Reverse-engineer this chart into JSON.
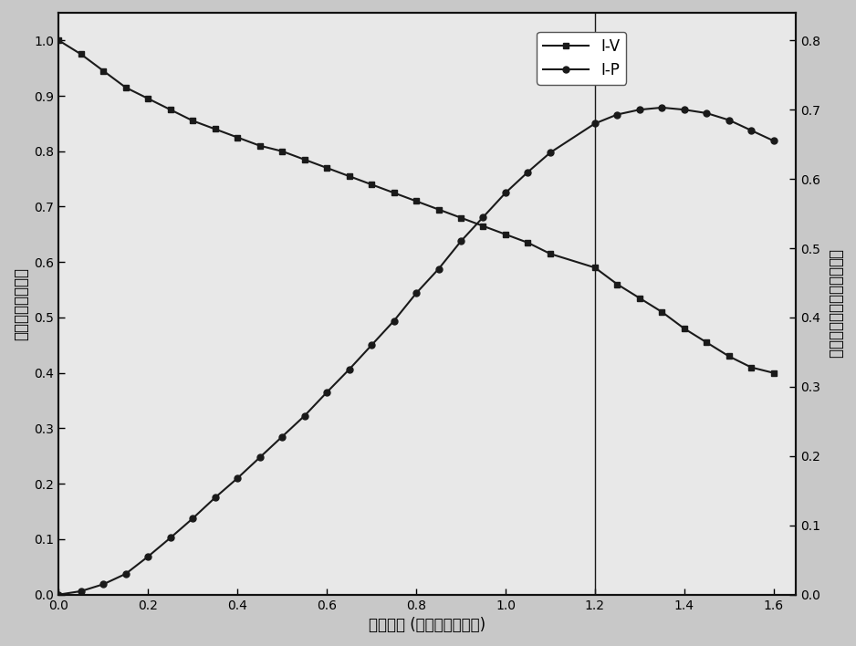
{
  "iv_x": [
    0.0,
    0.05,
    0.1,
    0.15,
    0.2,
    0.25,
    0.3,
    0.35,
    0.4,
    0.45,
    0.5,
    0.55,
    0.6,
    0.65,
    0.7,
    0.75,
    0.8,
    0.85,
    0.9,
    0.95,
    1.0,
    1.05,
    1.1,
    1.2,
    1.25,
    1.3,
    1.35,
    1.4,
    1.45,
    1.5,
    1.55,
    1.6
  ],
  "iv_y": [
    1.0,
    0.975,
    0.945,
    0.915,
    0.895,
    0.875,
    0.855,
    0.84,
    0.825,
    0.81,
    0.8,
    0.785,
    0.77,
    0.755,
    0.74,
    0.725,
    0.71,
    0.695,
    0.68,
    0.665,
    0.65,
    0.635,
    0.615,
    0.59,
    0.56,
    0.535,
    0.51,
    0.48,
    0.455,
    0.43,
    0.41,
    0.4
  ],
  "ip_x": [
    0.0,
    0.05,
    0.1,
    0.15,
    0.2,
    0.25,
    0.3,
    0.35,
    0.4,
    0.45,
    0.5,
    0.55,
    0.6,
    0.65,
    0.7,
    0.75,
    0.8,
    0.85,
    0.9,
    0.95,
    1.0,
    1.05,
    1.1,
    1.2,
    1.25,
    1.3,
    1.35,
    1.4,
    1.45,
    1.5,
    1.55,
    1.6
  ],
  "ip_y": [
    0.0,
    0.005,
    0.015,
    0.03,
    0.055,
    0.082,
    0.11,
    0.14,
    0.168,
    0.198,
    0.228,
    0.258,
    0.292,
    0.325,
    0.36,
    0.395,
    0.435,
    0.47,
    0.51,
    0.545,
    0.58,
    0.61,
    0.638,
    0.68,
    0.693,
    0.7,
    0.703,
    0.7,
    0.695,
    0.685,
    0.67,
    0.655
  ],
  "vline_x": 1.2,
  "xlabel": "电流密度 (安培每平方厕米)",
  "ylabel_left": "电池电压（伏特）",
  "ylabel_right": "功率密度（瓦每平方厕米）",
  "legend_iv": "I-V",
  "legend_ip": "I-P",
  "xlim": [
    0.0,
    1.65
  ],
  "ylim_left": [
    0.0,
    1.05
  ],
  "ylim_right": [
    0.0,
    0.84
  ],
  "xticks": [
    0.0,
    0.2,
    0.4,
    0.6,
    0.8,
    1.0,
    1.2,
    1.4,
    1.6
  ],
  "yticks_left": [
    0.0,
    0.1,
    0.2,
    0.3,
    0.4,
    0.5,
    0.6,
    0.7,
    0.8,
    0.9,
    1.0
  ],
  "yticks_right": [
    0.0,
    0.1,
    0.2,
    0.3,
    0.4,
    0.5,
    0.6,
    0.7,
    0.8
  ],
  "line_color": "#1a1a1a",
  "bg_color": "#e8e8e8",
  "figure_bg": "#c8c8c8"
}
